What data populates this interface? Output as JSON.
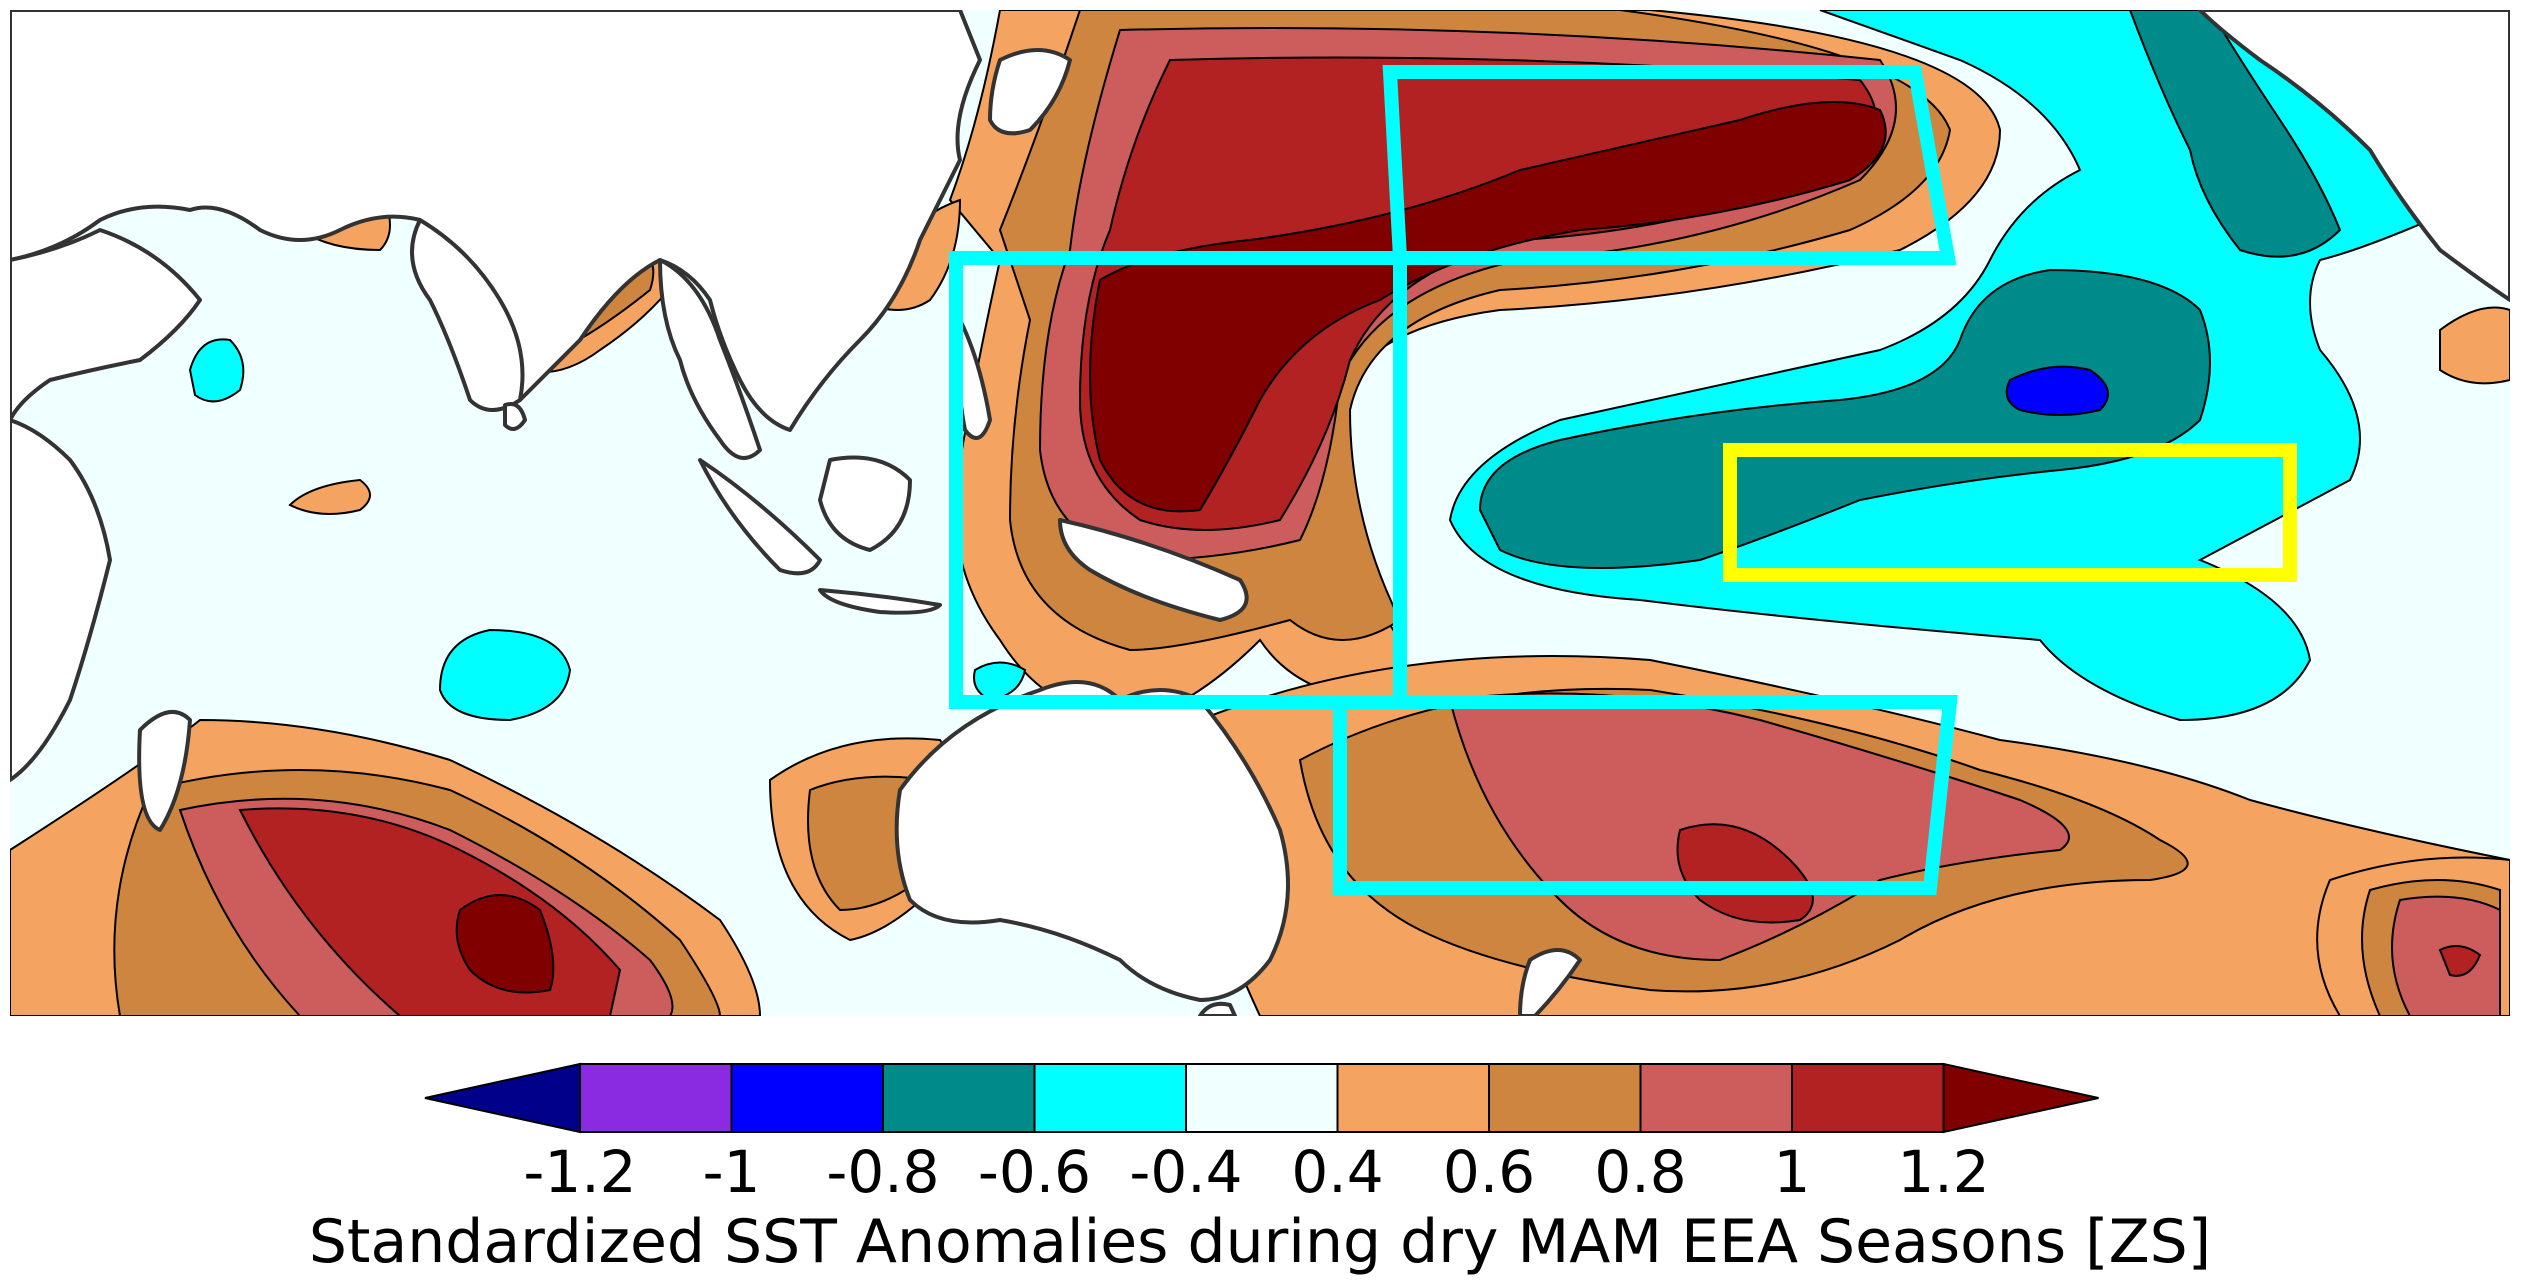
{
  "colorbar": {
    "title": "Standardized SST Anomalies during dry MAM EEA Seasons [ZS]",
    "ticks": [
      "-1.2",
      "-1",
      "-0.8",
      "-0.6",
      "-0.4",
      "0.4",
      "0.6",
      "0.8",
      "1",
      "1.2"
    ],
    "under_color": "#00008b",
    "over_color": "#800000",
    "bins": [
      {
        "range": "-1.2 to -1",
        "color": "#8a2be2"
      },
      {
        "range": "-1 to -0.8",
        "color": "#0000ff"
      },
      {
        "range": "-0.8 to -0.6",
        "color": "#008b8b"
      },
      {
        "range": "-0.6 to -0.4",
        "color": "#00ffff"
      },
      {
        "range": "-0.4 to 0.4",
        "color": "#f0ffff"
      },
      {
        "range": "0.4 to 0.6",
        "color": "#f4a460"
      },
      {
        "range": "0.6 to 0.8",
        "color": "#cd853f"
      },
      {
        "range": "0.8 to 1",
        "color": "#cd5c5c"
      },
      {
        "range": "1 to 1.2",
        "color": "#b22222"
      }
    ]
  },
  "colors": {
    "land": "#ffffff",
    "coast": "#333333",
    "region_box": "#00ffff",
    "highlight_box": "#ffff00"
  },
  "regions": [
    {
      "name": "north-pacific-box",
      "color": "#00ffff"
    },
    {
      "name": "western-pacific-box",
      "color": "#00ffff"
    },
    {
      "name": "south-pacific-box",
      "color": "#00ffff"
    },
    {
      "name": "nino-box",
      "color": "#ffff00"
    }
  ]
}
